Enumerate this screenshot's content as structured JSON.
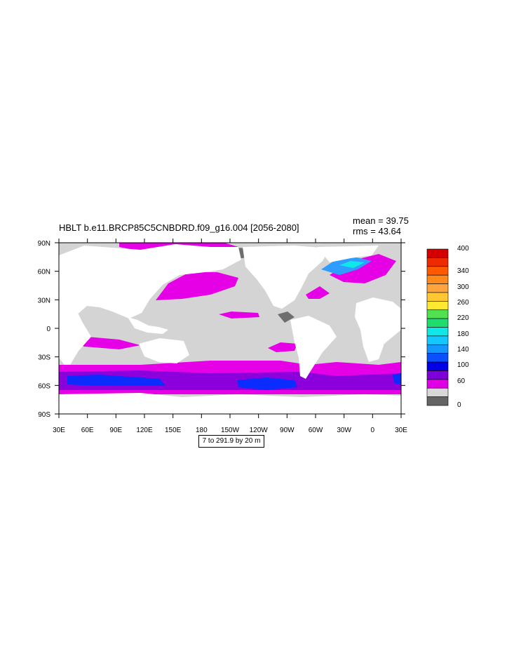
{
  "title": "HBLT b.e11.BRCP85C5CNBDRD.f09_g16.004 [2056-2080]",
  "stats": {
    "mean": "mean = 39.75",
    "rms": "rms = 43.64"
  },
  "footer": "7 to 291.9 by 20 m",
  "axes": {
    "x_ticks": [
      "30E",
      "60E",
      "90E",
      "120E",
      "150E",
      "180",
      "150W",
      "120W",
      "90W",
      "60W",
      "30W",
      "0",
      "30E"
    ],
    "y_ticks": [
      "90N",
      "60N",
      "30N",
      "0",
      "30S",
      "60S",
      "90S"
    ]
  },
  "colorbar": {
    "labels": [
      "400",
      "340",
      "300",
      "260",
      "220",
      "180",
      "140",
      "100",
      "60",
      "0"
    ],
    "colors": [
      "#d40000",
      "#ee2a00",
      "#ff5a00",
      "#ff8a1a",
      "#ffa53c",
      "#ffc830",
      "#ffe830",
      "#50e050",
      "#1edc6e",
      "#10e8e8",
      "#14c8ff",
      "#1496ff",
      "#0a50ff",
      "#0000e6",
      "#8000dc",
      "#e100e6",
      "#d8d8d8",
      "#646464"
    ]
  },
  "map_colors": {
    "land": "#ffffff",
    "ocean_low": "#d4d4d4",
    "ocean_lowest": "#6e6e6e",
    "band_60": "#e600e6",
    "band_80": "#8c00dc",
    "band_100": "#0a2cff"
  }
}
